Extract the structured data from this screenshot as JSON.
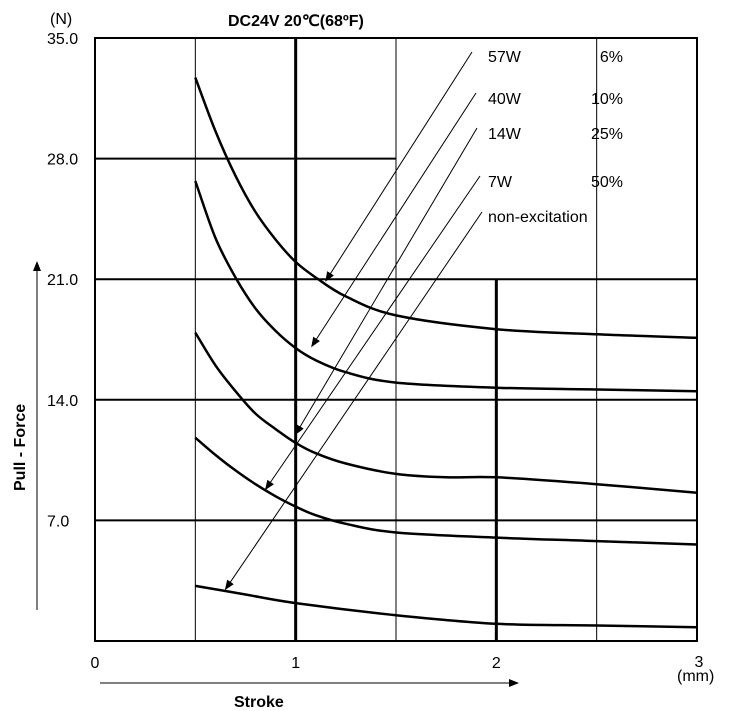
{
  "chart_data": {
    "type": "line",
    "title": "DC24V 20℃(68ºF)",
    "ylabel": "Pull - Force",
    "yunit": "(N)",
    "xlabel": "Stroke",
    "xunit": "(mm)",
    "xlim": [
      0,
      3
    ],
    "ylim": [
      0,
      35
    ],
    "x_ticks": [
      0,
      1,
      2,
      3
    ],
    "x_tick_labels": [
      "0",
      "1",
      "2",
      "3"
    ],
    "y_ticks": [
      7,
      14,
      21,
      28,
      35
    ],
    "y_tick_labels": [
      "7.0",
      "14.0",
      "21.0",
      "28.0",
      "35.0"
    ],
    "grid": true,
    "legend": [
      {
        "name": "57W",
        "duty": "6%"
      },
      {
        "name": "40W",
        "duty": "10%"
      },
      {
        "name": "14W",
        "duty": "25%"
      },
      {
        "name": "7W",
        "duty": "50%"
      },
      {
        "name": "non-excitation",
        "duty": ""
      }
    ],
    "series": [
      {
        "name": "57W",
        "x": [
          0.5,
          0.6,
          0.7,
          0.8,
          0.9,
          1.0,
          1.1,
          1.25,
          1.5,
          2.0,
          2.5,
          3.0
        ],
        "y": [
          32.7,
          29.6,
          27.0,
          24.9,
          23.3,
          22.0,
          21.1,
          20.0,
          18.9,
          18.1,
          17.8,
          17.6
        ]
      },
      {
        "name": "40W",
        "x": [
          0.5,
          0.6,
          0.7,
          0.8,
          0.9,
          1.0,
          1.1,
          1.25,
          1.5,
          2.0,
          2.5,
          3.0
        ],
        "y": [
          26.7,
          23.4,
          21.1,
          19.3,
          18.0,
          17.0,
          16.3,
          15.6,
          15.0,
          14.7,
          14.6,
          14.5
        ]
      },
      {
        "name": "14W",
        "x": [
          0.5,
          0.6,
          0.7,
          0.8,
          0.9,
          1.0,
          1.1,
          1.25,
          1.5,
          1.75,
          2.0,
          2.5,
          3.0
        ],
        "y": [
          17.9,
          16.0,
          14.5,
          13.2,
          12.3,
          11.5,
          10.9,
          10.3,
          9.7,
          9.5,
          9.5,
          9.1,
          8.6
        ]
      },
      {
        "name": "7W",
        "x": [
          0.5,
          0.6,
          0.7,
          0.8,
          0.9,
          1.0,
          1.1,
          1.25,
          1.5,
          2.0,
          2.5,
          3.0
        ],
        "y": [
          11.8,
          10.8,
          9.9,
          9.1,
          8.4,
          7.8,
          7.3,
          6.8,
          6.3,
          6.0,
          5.8,
          5.6
        ]
      },
      {
        "name": "non-excitation",
        "x": [
          0.5,
          0.75,
          1.0,
          1.5,
          2.0,
          2.5,
          3.0
        ],
        "y": [
          3.2,
          2.7,
          2.2,
          1.5,
          1.0,
          0.9,
          0.8
        ]
      }
    ],
    "stroke_arrow": "→",
    "force_arrow": "↑"
  }
}
